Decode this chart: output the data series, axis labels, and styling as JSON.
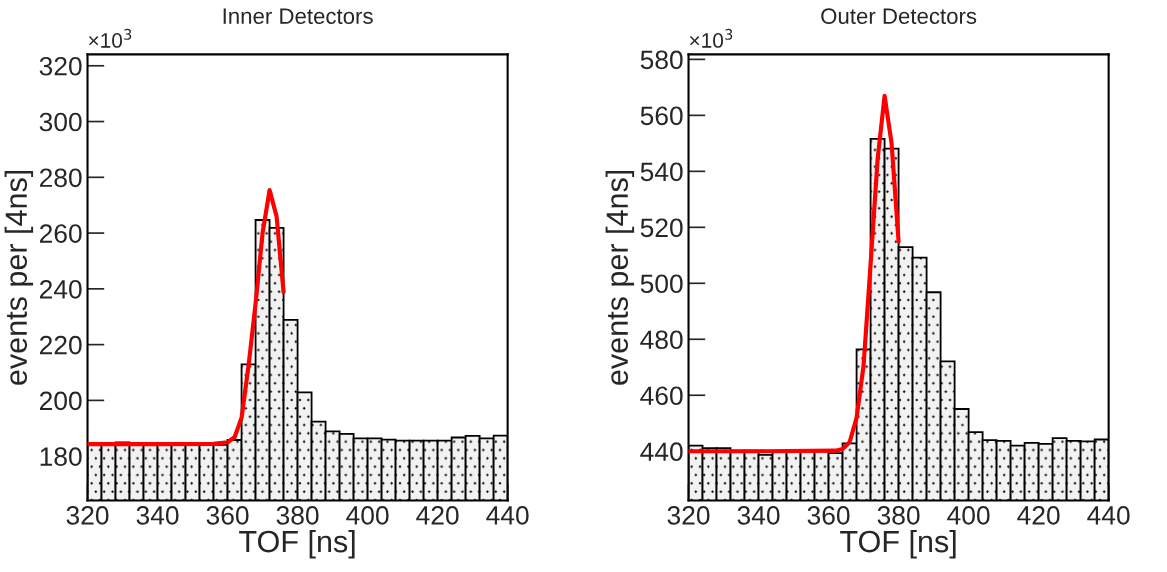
{
  "chart_data": [
    {
      "type": "histogram",
      "title": "Inner Detectors",
      "xlabel": "TOF [ns]",
      "ylabel": "events per [4ns]",
      "annotations": [
        "×10$^{3}$"
      ],
      "bins": [
        320,
        324,
        328,
        332,
        336,
        340,
        344,
        348,
        352,
        356,
        360,
        364,
        368,
        372,
        376,
        380,
        384,
        388,
        392,
        396,
        400,
        404,
        408,
        412,
        416,
        420,
        424,
        428,
        432,
        436,
        440
      ],
      "series": [
        {
          "type": "histogram",
          "color": "#000000",
          "values": [
            184.8,
            184.6,
            184.9,
            184.8,
            184.4,
            184.4,
            184.4,
            184.4,
            184.4,
            184.1,
            185.8,
            212.9,
            264.7,
            261.9,
            228.9,
            202.9,
            192.4,
            188.9,
            188.0,
            186.4,
            186.4,
            185.9,
            185.6,
            185.6,
            185.6,
            185.6,
            186.7,
            187.3,
            186.4,
            187.4
          ]
        },
        {
          "type": "line",
          "color": "#ff0000",
          "x": [
            320,
            340,
            356,
            360,
            362,
            364,
            366,
            368,
            370,
            372,
            374,
            376
          ],
          "values": [
            184.3,
            184.3,
            184.4,
            185,
            186.8,
            193.8,
            212.5,
            234.7,
            260,
            275.4,
            266,
            238.8
          ]
        }
      ],
      "xlim": [
        320,
        440
      ],
      "xticks": [
        320,
        340,
        360,
        380,
        400,
        420,
        440
      ],
      "ylim": [
        164.1,
        324.1
      ],
      "yticks": [
        180,
        200,
        220,
        240,
        260,
        280,
        300,
        320
      ],
      "grid": false,
      "legend": false
    },
    {
      "type": "histogram",
      "title": "Outer Detectors",
      "xlabel": "TOF [ns]",
      "ylabel": "events per [4ns]",
      "annotations": [
        "×10$^{3}$"
      ],
      "bins": [
        320,
        324,
        328,
        332,
        336,
        340,
        344,
        348,
        352,
        356,
        360,
        364,
        368,
        372,
        376,
        380,
        384,
        388,
        392,
        396,
        400,
        404,
        408,
        412,
        416,
        420,
        424,
        428,
        432,
        436,
        440
      ],
      "series": [
        {
          "type": "histogram",
          "color": "#000000",
          "values": [
            442.0,
            441.1,
            441.1,
            440.2,
            440.2,
            438.7,
            440.0,
            440.0,
            440.0,
            440.0,
            439.3,
            442.8,
            476.4,
            551.6,
            548.1,
            512.9,
            509.2,
            496.8,
            472.1,
            455.1,
            446.8,
            444.0,
            443.7,
            442.0,
            443.0,
            442.6,
            444.7,
            443.7,
            443.5,
            444.2
          ]
        },
        {
          "type": "line",
          "color": "#ff0000",
          "x": [
            320,
            340,
            362,
            364,
            366,
            368,
            370,
            372,
            374,
            376,
            378,
            380
          ],
          "values": [
            440,
            440,
            440.2,
            440.8,
            443.2,
            451.9,
            470.6,
            506.8,
            544.2,
            567,
            550,
            515
          ]
        }
      ],
      "xlim": [
        320,
        440
      ],
      "xticks": [
        320,
        340,
        360,
        380,
        400,
        420,
        440
      ],
      "ylim": [
        422.4,
        581.8
      ],
      "yticks": [
        440,
        460,
        480,
        500,
        520,
        540,
        560,
        580
      ],
      "grid": false,
      "legend": false
    }
  ]
}
